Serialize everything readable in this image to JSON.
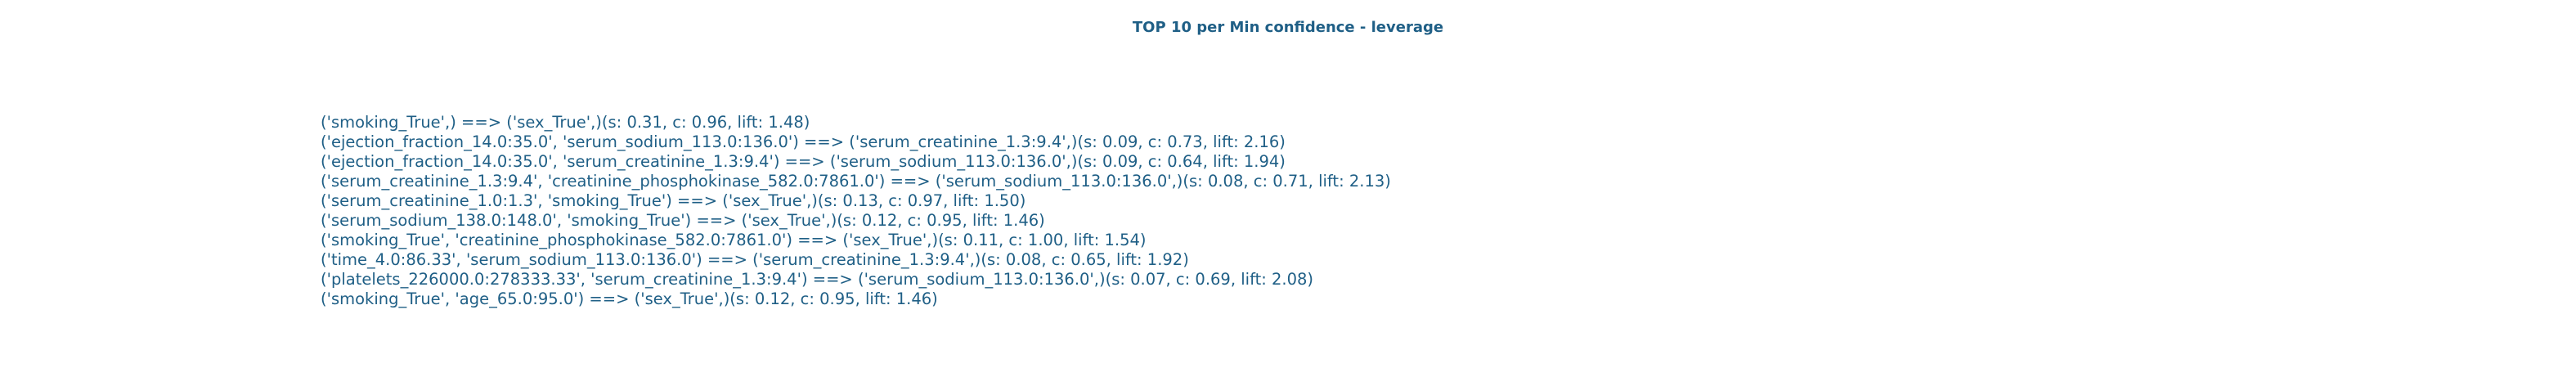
{
  "title": "TOP 10 per Min confidence - leverage",
  "rules": [
    "('smoking_True',) ==> ('sex_True',)(s: 0.31, c: 0.96, lift: 1.48)",
    "('ejection_fraction_14.0:35.0', 'serum_sodium_113.0:136.0') ==> ('serum_creatinine_1.3:9.4',)(s: 0.09, c: 0.73, lift: 2.16)",
    "('ejection_fraction_14.0:35.0', 'serum_creatinine_1.3:9.4') ==> ('serum_sodium_113.0:136.0',)(s: 0.09, c: 0.64, lift: 1.94)",
    "('serum_creatinine_1.3:9.4', 'creatinine_phosphokinase_582.0:7861.0') ==> ('serum_sodium_113.0:136.0',)(s: 0.08, c: 0.71, lift: 2.13)",
    "('serum_creatinine_1.0:1.3', 'smoking_True') ==> ('sex_True',)(s: 0.13, c: 0.97, lift: 1.50)",
    "('serum_sodium_138.0:148.0', 'smoking_True') ==> ('sex_True',)(s: 0.12, c: 0.95, lift: 1.46)",
    "('smoking_True', 'creatinine_phosphokinase_582.0:7861.0') ==> ('sex_True',)(s: 0.11, c: 1.00, lift: 1.54)",
    "('time_4.0:86.33', 'serum_sodium_113.0:136.0') ==> ('serum_creatinine_1.3:9.4',)(s: 0.08, c: 0.65, lift: 1.92)",
    "('platelets_226000.0:278333.33', 'serum_creatinine_1.3:9.4') ==> ('serum_sodium_113.0:136.0',)(s: 0.07, c: 0.69, lift: 2.08)",
    "('smoking_True', 'age_65.0:95.0') ==> ('sex_True',)(s: 0.12, c: 0.95, lift: 1.46)"
  ]
}
